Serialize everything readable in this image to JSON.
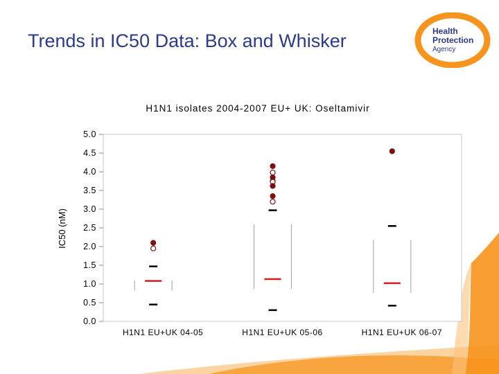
{
  "slide": {
    "title": "Trends in IC50 Data: Box and Whisker"
  },
  "logo": {
    "line1": "Health",
    "line2": "Protection",
    "line3": "Agency",
    "ring_color": "#f7941d",
    "text_color": "#2b3a8c"
  },
  "colors": {
    "median": "#d01c1c",
    "quartile": "#000000",
    "outlier": "#7a1010",
    "box_edge": "#a0a0a0",
    "accent_orange": "#f7941d"
  },
  "chart_data": {
    "type": "box",
    "title": "H1N1 isolates 2004-2007 EU+ UK: Oseltamivir",
    "ylabel": "IC50 (nM)",
    "xlabel": "",
    "ylim": [
      0,
      5
    ],
    "yticks": [
      "0.0",
      "0.5",
      "1.0",
      "1.5",
      "2.0",
      "2.5",
      "3.0",
      "3.5",
      "4.0",
      "4.5",
      "5.0"
    ],
    "categories": [
      "H1N1 EU+UK 04-05",
      "H1N1 EU+UK 05-06",
      "H1N1 EU+UK 06-07"
    ],
    "series": [
      {
        "low": 0.45,
        "q1": 0.45,
        "median": 1.08,
        "q3": 1.47,
        "high": 1.47,
        "outliers": [
          2.1,
          1.95
        ]
      },
      {
        "low": 0.3,
        "q1": 0.3,
        "median": 1.13,
        "q3": 2.97,
        "high": 2.97,
        "outliers": [
          4.15,
          3.98,
          3.85,
          3.75,
          3.73,
          3.62,
          3.35,
          3.2
        ]
      },
      {
        "low": 0.42,
        "q1": 0.42,
        "median": 1.02,
        "q3": 2.55,
        "high": 2.55,
        "outliers": [
          4.55
        ]
      }
    ],
    "grid": false,
    "legend": "none"
  }
}
